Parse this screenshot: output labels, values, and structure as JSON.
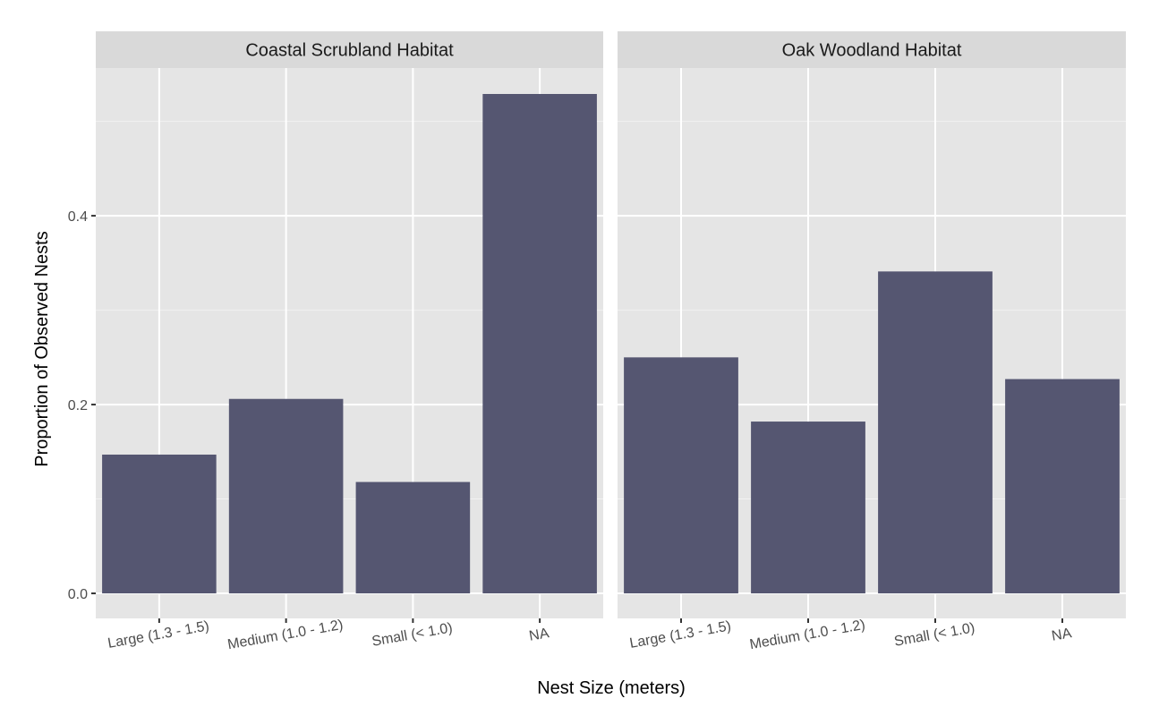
{
  "chart_data": {
    "type": "bar",
    "xlabel": "Nest Size (meters)",
    "ylabel": "Proportion of Observed Nests",
    "ylim": [
      -0.0265,
      0.5565
    ],
    "y_ticks": [
      0.0,
      0.2,
      0.4
    ],
    "y_tick_labels": [
      "0.0",
      "0.2",
      "0.4"
    ],
    "grid": true,
    "bar_color": "#555671",
    "panel_background": "#e5e5e5",
    "strip_background": "#d9d9d9",
    "categories": [
      "Large (1.3 - 1.5)",
      "Medium (1.0 - 1.2)",
      "Small (< 1.0)",
      "NA"
    ],
    "panels": [
      {
        "title": "Coastal Scrubland Habitat",
        "values": [
          0.147,
          0.206,
          0.118,
          0.529
        ]
      },
      {
        "title": "Oak Woodland Habitat",
        "values": [
          0.25,
          0.182,
          0.341,
          0.227
        ]
      }
    ]
  }
}
